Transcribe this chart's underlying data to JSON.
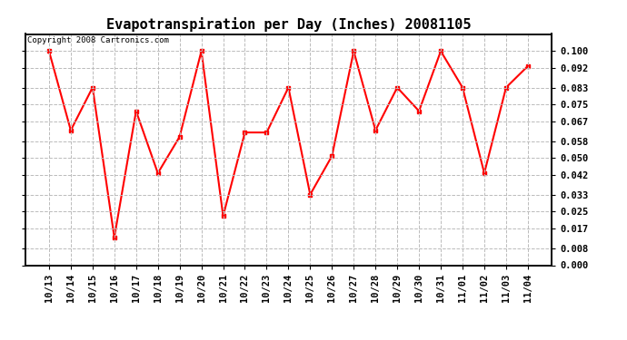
{
  "title": "Evapotranspiration per Day (Inches) 20081105",
  "copyright": "Copyright 2008 Cartronics.com",
  "labels": [
    "10/13",
    "10/14",
    "10/15",
    "10/16",
    "10/17",
    "10/18",
    "10/19",
    "10/20",
    "10/21",
    "10/22",
    "10/23",
    "10/24",
    "10/25",
    "10/26",
    "10/27",
    "10/28",
    "10/29",
    "10/30",
    "10/31",
    "11/01",
    "11/02",
    "11/03",
    "11/04"
  ],
  "values": [
    0.1,
    0.063,
    0.083,
    0.013,
    0.072,
    0.043,
    0.06,
    0.1,
    0.023,
    0.062,
    0.062,
    0.083,
    0.033,
    0.051,
    0.1,
    0.063,
    0.083,
    0.072,
    0.1,
    0.083,
    0.043,
    0.083,
    0.093
  ],
  "line_color": "#ff0000",
  "marker": "s",
  "marker_size": 3,
  "bg_color": "#ffffff",
  "grid_color": "#bbbbbb",
  "ylim": [
    0.0,
    0.108
  ],
  "yticks": [
    0.0,
    0.008,
    0.017,
    0.025,
    0.033,
    0.042,
    0.05,
    0.058,
    0.067,
    0.075,
    0.083,
    0.092,
    0.1
  ],
  "title_fontsize": 11,
  "tick_fontsize": 7.5,
  "copyright_fontsize": 6.5
}
